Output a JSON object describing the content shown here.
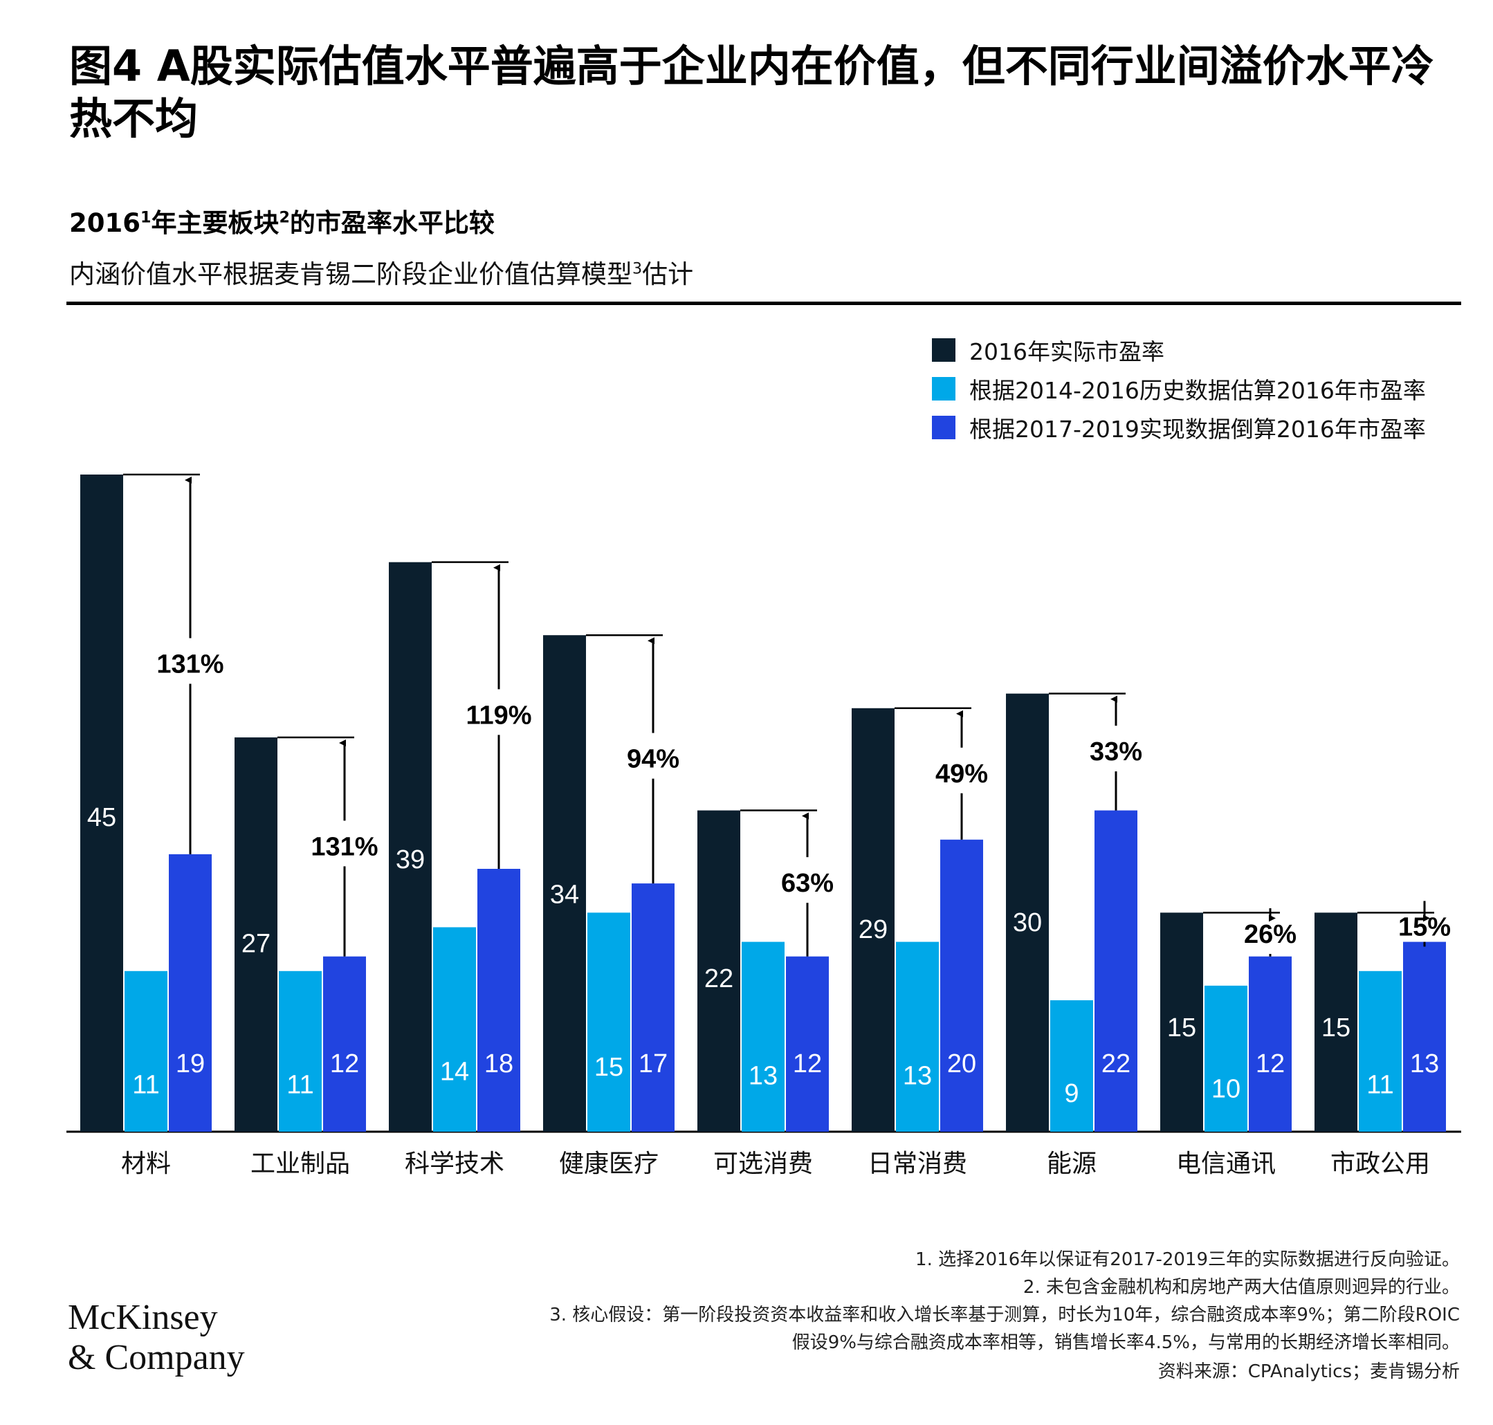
{
  "header": {
    "title": "图4 A股实际估值水平普遍高于企业内在价值，但不同行业间溢价水平冷热不均",
    "subtitle_year": "2016",
    "subtitle_sup1": "1",
    "subtitle_mid": "年主要板块",
    "subtitle_sup2": "2",
    "subtitle_end": "的市盈率水平比较",
    "subtitle2_main": "内涵价值水平根据麦肯锡二阶段企业价值估算模型",
    "subtitle2_sup": "3",
    "subtitle2_end": "估计"
  },
  "legend": [
    {
      "label": "2016年实际市盈率",
      "color": "#0b1f2e"
    },
    {
      "label": "根据2014-2016历史数据估算2016年市盈率",
      "color": "#00a8e8"
    },
    {
      "label": "根据2017-2019实现数据倒算2016年市盈率",
      "color": "#2144e0"
    }
  ],
  "chart_data": {
    "type": "bar",
    "categories": [
      "材料",
      "工业制品",
      "科学技术",
      "健康医疗",
      "可选消费",
      "日常消费",
      "能源",
      "电信通讯",
      "市政公用"
    ],
    "series": [
      {
        "name": "2016年实际市盈率",
        "values": [
          45,
          27,
          39,
          34,
          22,
          29,
          30,
          15,
          15
        ],
        "color": "#0b1f2e"
      },
      {
        "name": "根据2014-2016历史数据估算2016年市盈率",
        "values": [
          11,
          11,
          14,
          15,
          13,
          13,
          9,
          10,
          11
        ],
        "color": "#00a8e8"
      },
      {
        "name": "根据2017-2019实现数据倒算2016年市盈率",
        "values": [
          19,
          12,
          18,
          17,
          12,
          20,
          22,
          12,
          13
        ],
        "color": "#2144e0"
      }
    ],
    "premiums": [
      "131%",
      "131%",
      "119%",
      "94%",
      "63%",
      "49%",
      "33%",
      "26%",
      "15%"
    ],
    "ylim": [
      0,
      45
    ]
  },
  "footnotes": {
    "note1": "1. 选择2016年以保证有2017-2019三年的实际数据进行反向验证。",
    "note2": "2. 未包含金融机构和房地产两大估值原则迥异的行业。",
    "note3a": "3. 核心假设：第一阶段投资资本收益率和收入增长率基于测算，时长为10年，综合融资成本率9%；第二阶段ROIC",
    "note3b": "假设9%与综合融资成本率相等，销售增长率4.5%，与常用的长期经济增长率相同。",
    "source": "资料来源：CPAnalytics；麦肯锡分析"
  },
  "logo": {
    "line1": "McKinsey",
    "line2": "& Company"
  }
}
